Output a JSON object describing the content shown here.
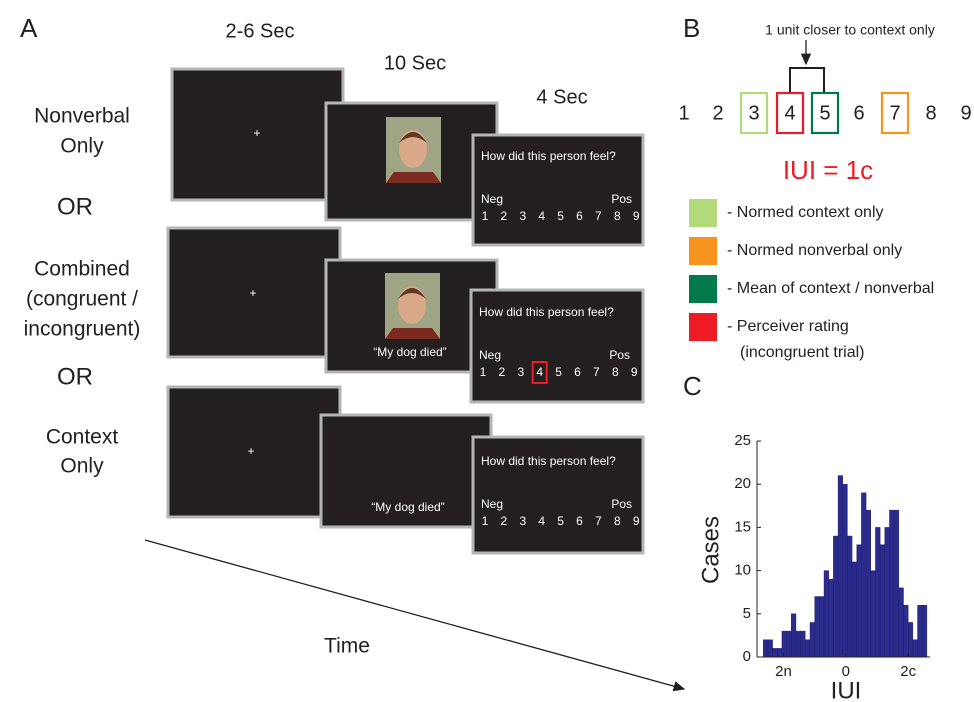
{
  "panel_a": {
    "label": "A",
    "timings": [
      "2-6 Sec",
      "10 Sec",
      "4 Sec"
    ],
    "conditions": [
      [
        "Nonverbal",
        "Only"
      ],
      [
        "Combined",
        "(congruent /",
        "incongruent)"
      ],
      [
        "Context",
        "Only"
      ]
    ],
    "separator": "OR",
    "fixation": "+",
    "question": "How did this person feel?",
    "scale_neg": "Neg",
    "scale_pos": "Pos",
    "scale": [
      1,
      2,
      3,
      4,
      5,
      6,
      7,
      8,
      9
    ],
    "context": "“My dog died”",
    "time_label": "Time"
  },
  "panel_b": {
    "label": "B",
    "annotation": "1 unit closer to context only",
    "scale": [
      1,
      2,
      3,
      4,
      5,
      6,
      7,
      8,
      9
    ],
    "equation": "IUI = 1c",
    "legend": [
      {
        "color": "#b2d97a",
        "label": [
          "- Normed context only"
        ]
      },
      {
        "color": "#f7941d",
        "label": [
          "- Normed nonverbal only"
        ]
      },
      {
        "color": "#007a4d",
        "label": [
          "- Mean of context / nonverbal"
        ]
      },
      {
        "color": "#ed1c24",
        "label": [
          "- Perceiver rating",
          "(incongruent trial)"
        ]
      }
    ]
  },
  "panel_c": {
    "label": "C"
  },
  "chart_data": {
    "type": "histogram",
    "xlabel": "IUI",
    "ylabel": "Cases",
    "color": "#2b2b8e",
    "bins": [
      -2.65,
      -2.5,
      -2.35,
      -2.2,
      -2.05,
      -1.9,
      -1.75,
      -1.6,
      -1.45,
      -1.3,
      -1.15,
      -1.0,
      -0.85,
      -0.7,
      -0.55,
      -0.4,
      -0.25,
      -0.1,
      0.05,
      0.2,
      0.35,
      0.5,
      0.65,
      0.8,
      0.95,
      1.1,
      1.25,
      1.4,
      1.55,
      1.7,
      1.85,
      2.0,
      2.15,
      2.3,
      2.45,
      2.6
    ],
    "values": [
      2,
      2,
      1,
      1,
      3,
      3,
      5,
      3,
      3,
      2,
      4,
      7,
      7,
      10,
      9,
      14,
      21,
      20,
      14,
      11,
      13,
      19,
      17,
      10,
      15,
      13,
      15,
      17,
      17,
      8,
      6,
      4,
      2,
      6,
      6
    ],
    "xlim": [
      -2.85,
      2.7
    ],
    "ylim": [
      0,
      25
    ],
    "xticks": [
      {
        "value": -2,
        "label": "2n"
      },
      0,
      {
        "value": 2,
        "label": "2c"
      }
    ],
    "yticks": [
      0,
      5,
      10,
      15,
      20,
      25
    ]
  }
}
